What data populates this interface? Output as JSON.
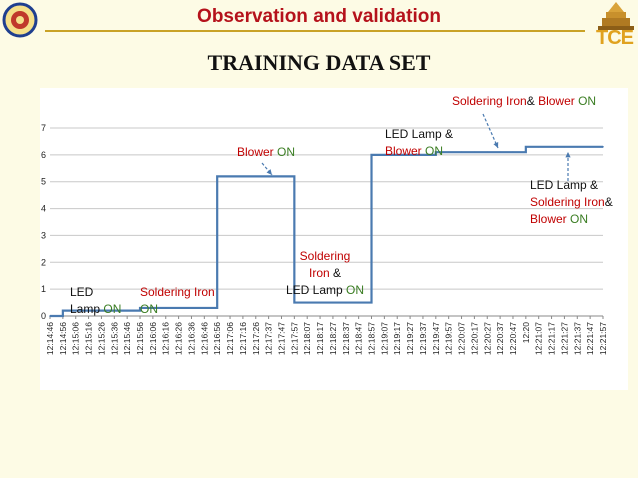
{
  "slide": {
    "title": "Observation and validation",
    "subtitle": "TRAINING DATA SET",
    "logo_right_text": "TCE"
  },
  "colors": {
    "title": "#b5121b",
    "line": "#4a7ab0",
    "grid": "#c8c8c8",
    "red": "#c00000",
    "green": "#3a7d22",
    "background": "#fdfbe5"
  },
  "chart_data": {
    "type": "line",
    "ylim": [
      0,
      7
    ],
    "yticks": [
      0,
      1,
      2,
      3,
      4,
      5,
      6,
      7
    ],
    "grid": true,
    "categories": [
      "12:14:46",
      "12:14:56",
      "12:15:06",
      "12:15:16",
      "12:15:26",
      "12:15:36",
      "12:15:46",
      "12:15:56",
      "12:16:06",
      "12:16:16",
      "12:16:26",
      "12:16:36",
      "12:16:46",
      "12:16:56",
      "12:17:06",
      "12:17:16",
      "12:17:26",
      "12:17:37",
      "12:17:47",
      "12:17:57",
      "12:18:07",
      "12:18:17",
      "12:18:27",
      "12:18:37",
      "12:18:47",
      "12:18:57",
      "12:19:07",
      "12:19:17",
      "12:19:27",
      "12:19:37",
      "12:19:47",
      "12:19:57",
      "12:20:07",
      "12:20:17",
      "12:20:27",
      "12:20:37",
      "12:20:47",
      "12:20",
      "12:21:07",
      "12:21:17",
      "12:21:27",
      "12:21:37",
      "12:21:47",
      "12:21:57"
    ],
    "series": [
      {
        "values": [
          0,
          0.2,
          0.2,
          0.2,
          0.2,
          0.2,
          0.2,
          0.3,
          0.3,
          0.3,
          0.3,
          0.3,
          0.3,
          5.2,
          5.2,
          5.2,
          5.2,
          5.2,
          5.2,
          0.5,
          0.5,
          0.5,
          0.5,
          0.5,
          0.5,
          6.0,
          6.0,
          6.0,
          6.0,
          6.0,
          6.1,
          6.1,
          6.1,
          6.1,
          6.1,
          6.1,
          6.1,
          6.3,
          6.3,
          6.3,
          6.3,
          6.3,
          6.3,
          6.3
        ]
      }
    ],
    "annotations": [
      {
        "id": "ann1",
        "lines": [
          [
            {
              "t": "LED",
              "c": "black"
            }
          ],
          [
            {
              "t": "Lamp ",
              "c": "black"
            },
            {
              "t": "ON",
              "c": "green"
            }
          ]
        ]
      },
      {
        "id": "ann2",
        "lines": [
          [
            {
              "t": "Soldering Iron",
              "c": "red"
            }
          ],
          [
            {
              "t": "ON",
              "c": "green"
            }
          ]
        ]
      },
      {
        "id": "ann3",
        "lines": [
          [
            {
              "t": "Blower",
              "c": "red"
            },
            {
              "t": "  ON",
              "c": "green"
            }
          ]
        ]
      },
      {
        "id": "ann4",
        "lines": [
          [
            {
              "t": "Soldering",
              "c": "red"
            }
          ],
          [
            {
              "t": "Iron ",
              "c": "red"
            },
            {
              "t": "&",
              "c": "black"
            }
          ],
          [
            {
              "t": "LED Lamp ",
              "c": "black"
            },
            {
              "t": "ON",
              "c": "green"
            }
          ]
        ]
      },
      {
        "id": "ann5",
        "lines": [
          [
            {
              "t": "LED Lamp &",
              "c": "black"
            }
          ],
          [
            {
              "t": "Blower ",
              "c": "red"
            },
            {
              "t": "ON",
              "c": "green"
            }
          ]
        ]
      },
      {
        "id": "ann6",
        "lines": [
          [
            {
              "t": "Soldering Iron",
              "c": "red"
            },
            {
              "t": "& ",
              "c": "black"
            },
            {
              "t": "Blower",
              "c": "red"
            },
            {
              "t": "  ON",
              "c": "green"
            }
          ]
        ]
      },
      {
        "id": "ann7",
        "lines": [
          [
            {
              "t": "LED Lamp &",
              "c": "black"
            }
          ],
          [
            {
              "t": "Soldering Iron",
              "c": "red"
            },
            {
              "t": "&",
              "c": "black"
            }
          ],
          [
            {
              "t": "Blower ",
              "c": "red"
            },
            {
              "t": "ON",
              "c": "green"
            }
          ]
        ]
      }
    ]
  }
}
